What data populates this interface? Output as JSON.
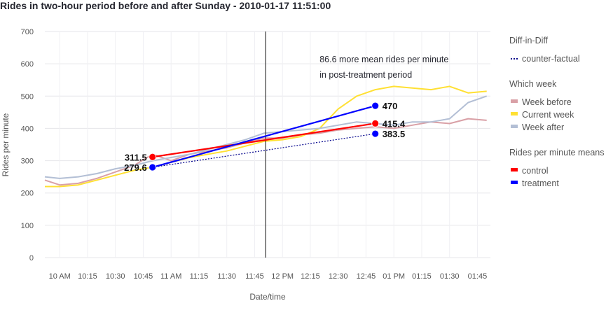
{
  "chart_data": {
    "type": "line",
    "title": "Rides in two-hour period before and after Sunday - 2010-01-17 11:51:00",
    "xlabel": "Date/time",
    "ylabel": "Rides per minute",
    "ylim": [
      0,
      700
    ],
    "yticks": [
      0,
      100,
      200,
      300,
      400,
      500,
      600,
      700
    ],
    "xlim": [
      "09:52",
      "13:52"
    ],
    "xticks": [
      {
        "t": "10:00",
        "label": "10 AM"
      },
      {
        "t": "10:15",
        "label": "10:15"
      },
      {
        "t": "10:30",
        "label": "10:30"
      },
      {
        "t": "10:45",
        "label": "10:45"
      },
      {
        "t": "11:00",
        "label": "11 AM"
      },
      {
        "t": "11:15",
        "label": "11:15"
      },
      {
        "t": "11:30",
        "label": "11:30"
      },
      {
        "t": "11:45",
        "label": "11:45"
      },
      {
        "t": "12:00",
        "label": "12 PM"
      },
      {
        "t": "12:15",
        "label": "12:15"
      },
      {
        "t": "12:30",
        "label": "12:30"
      },
      {
        "t": "12:45",
        "label": "12:45"
      },
      {
        "t": "13:00",
        "label": "01 PM"
      },
      {
        "t": "13:15",
        "label": "01:15"
      },
      {
        "t": "13:30",
        "label": "01:30"
      },
      {
        "t": "13:45",
        "label": "01:45"
      }
    ],
    "event_line": "11:51",
    "grid": true,
    "legend_placement": "right",
    "series": [
      {
        "name": "Week before",
        "color": "#d9a0a6",
        "x": [
          "09:52",
          "10:00",
          "10:10",
          "10:20",
          "10:30",
          "10:40",
          "10:50",
          "11:00",
          "11:10",
          "11:20",
          "11:30",
          "11:40",
          "11:50",
          "12:00",
          "12:10",
          "12:20",
          "12:30",
          "12:40",
          "12:50",
          "13:00",
          "13:10",
          "13:20",
          "13:30",
          "13:40",
          "13:50"
        ],
        "y": [
          240,
          225,
          230,
          245,
          265,
          285,
          320,
          300,
          320,
          330,
          340,
          355,
          370,
          370,
          380,
          385,
          395,
          400,
          405,
          400,
          410,
          420,
          415,
          430,
          425
        ]
      },
      {
        "name": "Current week",
        "color": "#ffe033",
        "x": [
          "09:52",
          "10:00",
          "10:10",
          "10:20",
          "10:30",
          "10:40",
          "10:50",
          "11:00",
          "11:10",
          "11:20",
          "11:30",
          "11:40",
          "11:50",
          "12:00",
          "12:10",
          "12:20",
          "12:30",
          "12:40",
          "12:50",
          "13:00",
          "13:10",
          "13:20",
          "13:30",
          "13:40",
          "13:50"
        ],
        "y": [
          220,
          220,
          225,
          240,
          255,
          270,
          280,
          295,
          310,
          320,
          330,
          345,
          360,
          365,
          375,
          400,
          460,
          500,
          520,
          530,
          525,
          520,
          530,
          510,
          515
        ]
      },
      {
        "name": "Week after",
        "color": "#b3bfd5",
        "x": [
          "09:52",
          "10:00",
          "10:10",
          "10:20",
          "10:30",
          "10:40",
          "10:50",
          "11:00",
          "11:10",
          "11:20",
          "11:30",
          "11:40",
          "11:50",
          "12:00",
          "12:10",
          "12:20",
          "12:30",
          "12:40",
          "12:50",
          "13:00",
          "13:10",
          "13:20",
          "13:30",
          "13:40",
          "13:50"
        ],
        "y": [
          250,
          245,
          250,
          260,
          275,
          285,
          300,
          310,
          320,
          335,
          350,
          365,
          385,
          390,
          395,
          400,
          410,
          420,
          415,
          410,
          420,
          420,
          430,
          480,
          500
        ]
      }
    ],
    "means": {
      "pre_x": "10:50",
      "post_x": "12:50",
      "control": {
        "name": "control",
        "color": "#ff0000",
        "pre": 311.5,
        "post": 415.4
      },
      "treatment": {
        "name": "treatment",
        "color": "#0000ff",
        "pre": 279.6,
        "post": 470
      },
      "counterfactual": {
        "name": "counter-factual",
        "pre": 279.6,
        "post": 383.5
      }
    },
    "labels": {
      "control_pre": "311.5",
      "treatment_pre": "279.6",
      "treatment_post": "470",
      "control_post": "415.4",
      "counterfactual_post": "383.5"
    },
    "annotation": {
      "line1": "86.6 more mean rides per minute",
      "line2": "in post-treatment period",
      "x": "12:20",
      "y": 590
    },
    "legend": {
      "group1_title": "Diff-in-Diff",
      "group1_items": [
        "counter-factual"
      ],
      "group2_title": "Which week",
      "group2_items": [
        "Week before",
        "Current week",
        "Week after"
      ],
      "group3_title": "Rides per minute means",
      "group3_items": [
        "control",
        "treatment"
      ]
    }
  }
}
